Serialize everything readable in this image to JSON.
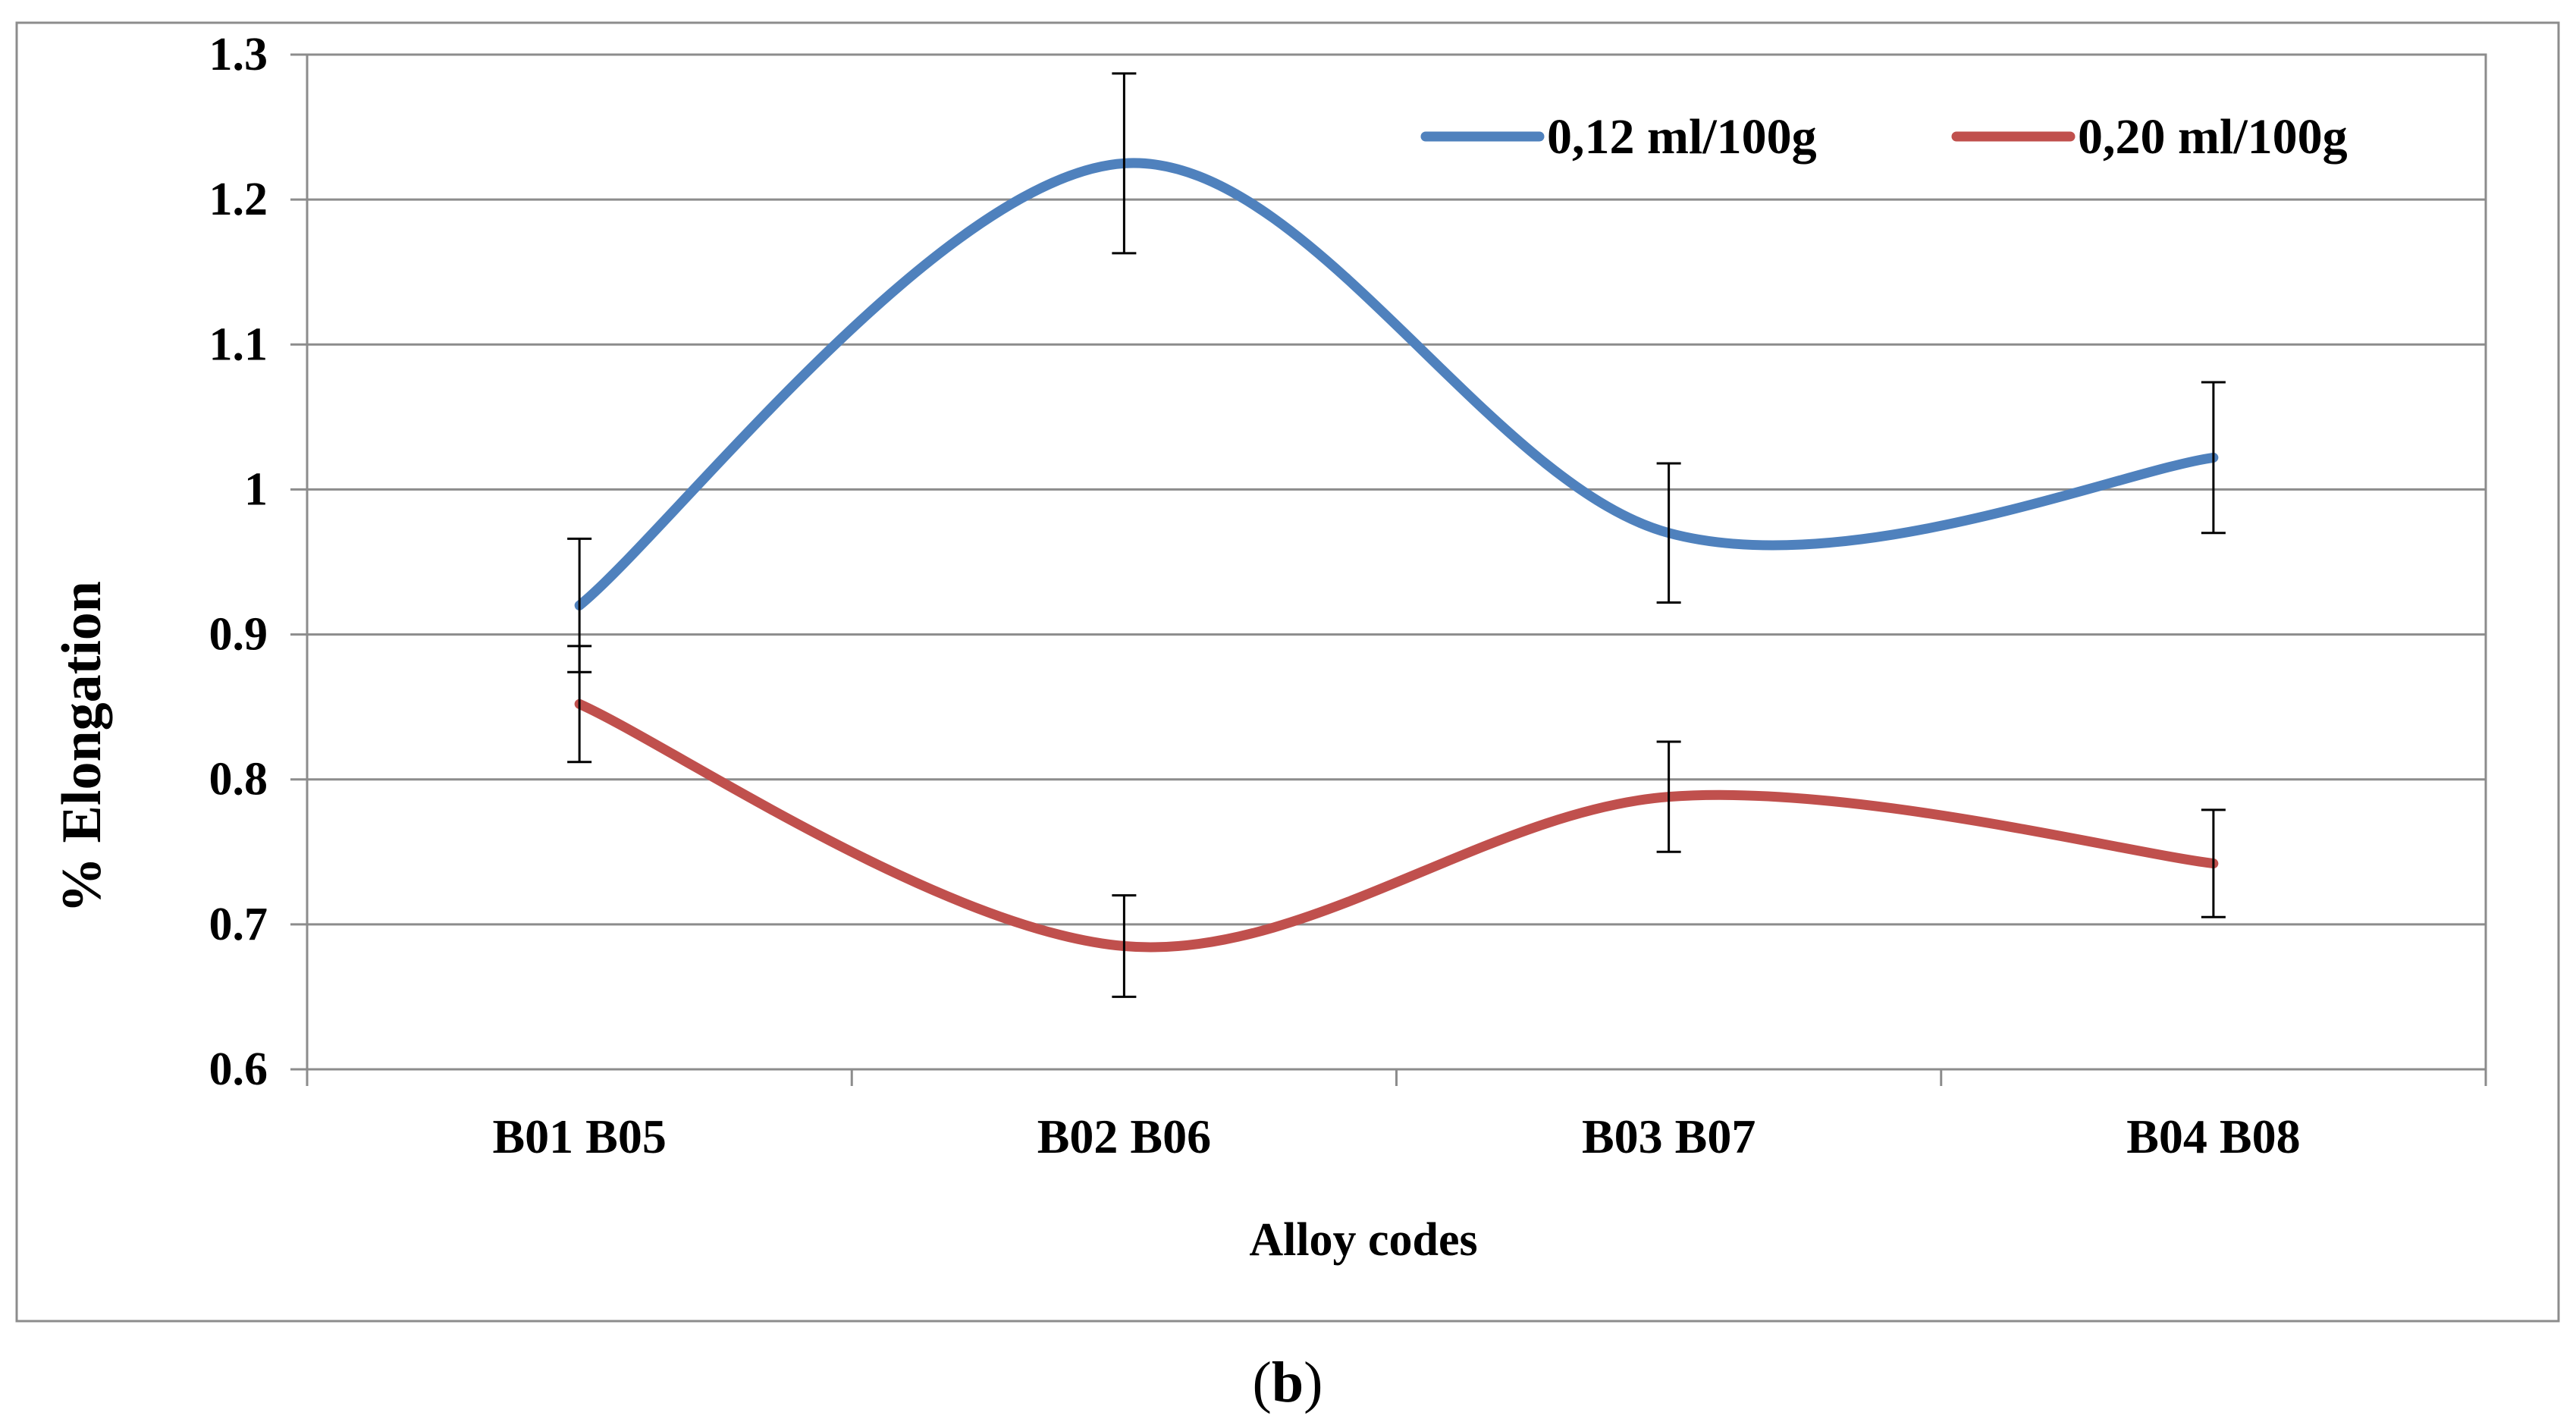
{
  "chart_data": {
    "type": "line",
    "title": "",
    "xlabel": "Alloy codes",
    "ylabel": "% Elongation",
    "categories": [
      "B01 B05",
      "B02 B06",
      "B03 B07",
      "B04 B08"
    ],
    "ylim": [
      0.6,
      1.3
    ],
    "yticks": [
      "0.6",
      "0.7",
      "0.8",
      "0.9",
      "1",
      "1.1",
      "1.2",
      "1.3"
    ],
    "grid": true,
    "legend_position": "top-right",
    "smooth": true,
    "series": [
      {
        "name": "0,12 ml/100g",
        "color": "#4f81bd",
        "values": [
          0.92,
          1.225,
          0.97,
          1.022
        ],
        "error": [
          0.046,
          0.062,
          0.048,
          0.052
        ]
      },
      {
        "name": "0,20 ml/100g",
        "color": "#c0504d",
        "values": [
          0.852,
          0.685,
          0.788,
          0.742
        ],
        "error": [
          0.04,
          0.035,
          0.038,
          0.037
        ]
      }
    ]
  },
  "caption": {
    "open": "(",
    "letter": "b",
    "close": ")"
  }
}
